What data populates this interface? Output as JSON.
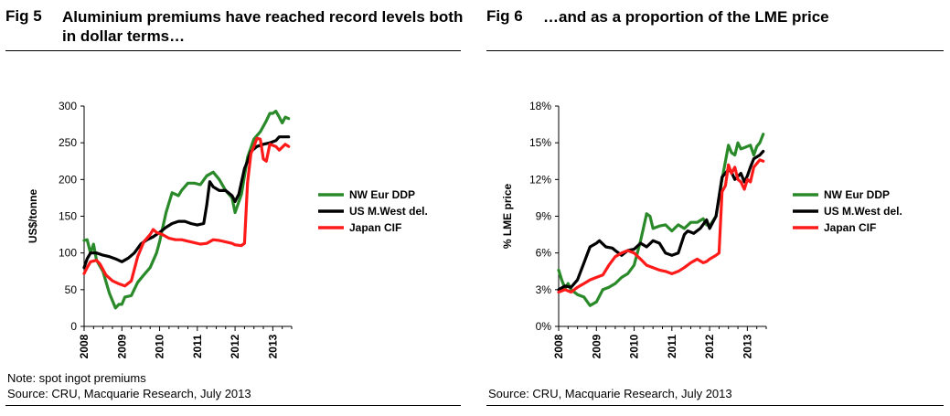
{
  "figures": [
    {
      "fig_number": "Fig 5",
      "title": "Aluminium premiums have reached record levels both in dollar terms…",
      "note": "Note: spot ingot premiums",
      "source": "Source: CRU, Macquarie Research, July 2013"
    },
    {
      "fig_number": "Fig 6",
      "title": "…and as a proportion of the LME price",
      "note": "",
      "source": "Source: CRU, Macquarie Research, July 2013"
    }
  ],
  "colors": {
    "nw_eur": "#2a8a2a",
    "us_mwest": "#000000",
    "japan": "#ff1a1a"
  },
  "chart_data": [
    {
      "type": "line",
      "ylabel": "US$/tonne",
      "xlabel": "",
      "ylim": [
        0,
        300
      ],
      "yticks": [
        "0",
        "50",
        "100",
        "150",
        "200",
        "250",
        "300"
      ],
      "xlim": [
        2008,
        2013.5
      ],
      "xticks": [
        "2008",
        "2009",
        "2010",
        "2011",
        "2012",
        "2013"
      ],
      "legend_position": "right",
      "grid": false,
      "series": [
        {
          "name": "NW Eur DDP",
          "color": "#2a8a2a",
          "points": [
            [
              2008.0,
              117
            ],
            [
              2008.08,
              118
            ],
            [
              2008.17,
              100
            ],
            [
              2008.25,
              112
            ],
            [
              2008.33,
              90
            ],
            [
              2008.5,
              75
            ],
            [
              2008.67,
              45
            ],
            [
              2008.83,
              25
            ],
            [
              2008.92,
              30
            ],
            [
              2009.0,
              30
            ],
            [
              2009.08,
              40
            ],
            [
              2009.25,
              42
            ],
            [
              2009.42,
              60
            ],
            [
              2009.58,
              70
            ],
            [
              2009.75,
              80
            ],
            [
              2009.92,
              100
            ],
            [
              2010.0,
              115
            ],
            [
              2010.17,
              155
            ],
            [
              2010.33,
              182
            ],
            [
              2010.5,
              178
            ],
            [
              2010.58,
              185
            ],
            [
              2010.75,
              195
            ],
            [
              2010.92,
              195
            ],
            [
              2011.08,
              193
            ],
            [
              2011.25,
              205
            ],
            [
              2011.42,
              210
            ],
            [
              2011.58,
              200
            ],
            [
              2011.75,
              185
            ],
            [
              2011.92,
              175
            ],
            [
              2012.0,
              155
            ],
            [
              2012.17,
              180
            ],
            [
              2012.33,
              230
            ],
            [
              2012.5,
              255
            ],
            [
              2012.67,
              265
            ],
            [
              2012.83,
              280
            ],
            [
              2012.92,
              290
            ],
            [
              2013.0,
              290
            ],
            [
              2013.08,
              293
            ],
            [
              2013.17,
              285
            ],
            [
              2013.25,
              277
            ],
            [
              2013.33,
              285
            ],
            [
              2013.42,
              283
            ]
          ]
        },
        {
          "name": "US M.West del.",
          "color": "#000000",
          "points": [
            [
              2008.0,
              80
            ],
            [
              2008.08,
              92
            ],
            [
              2008.17,
              100
            ],
            [
              2008.33,
              100
            ],
            [
              2008.5,
              97
            ],
            [
              2008.67,
              95
            ],
            [
              2008.83,
              92
            ],
            [
              2009.0,
              88
            ],
            [
              2009.17,
              93
            ],
            [
              2009.33,
              100
            ],
            [
              2009.5,
              112
            ],
            [
              2009.67,
              118
            ],
            [
              2009.83,
              122
            ],
            [
              2010.0,
              128
            ],
            [
              2010.17,
              135
            ],
            [
              2010.33,
              140
            ],
            [
              2010.5,
              143
            ],
            [
              2010.67,
              143
            ],
            [
              2010.83,
              140
            ],
            [
              2011.0,
              138
            ],
            [
              2011.17,
              140
            ],
            [
              2011.25,
              165
            ],
            [
              2011.33,
              197
            ],
            [
              2011.42,
              190
            ],
            [
              2011.58,
              185
            ],
            [
              2011.75,
              185
            ],
            [
              2011.92,
              178
            ],
            [
              2012.0,
              170
            ],
            [
              2012.1,
              180
            ],
            [
              2012.25,
              215
            ],
            [
              2012.33,
              225
            ],
            [
              2012.42,
              238
            ],
            [
              2012.58,
              245
            ],
            [
              2012.75,
              248
            ],
            [
              2012.92,
              250
            ],
            [
              2013.08,
              253
            ],
            [
              2013.17,
              258
            ],
            [
              2013.42,
              258
            ]
          ]
        },
        {
          "name": "Japan CIF",
          "color": "#ff1a1a",
          "points": [
            [
              2008.0,
              72
            ],
            [
              2008.08,
              80
            ],
            [
              2008.17,
              88
            ],
            [
              2008.33,
              90
            ],
            [
              2008.42,
              85
            ],
            [
              2008.58,
              70
            ],
            [
              2008.75,
              62
            ],
            [
              2008.92,
              58
            ],
            [
              2009.08,
              55
            ],
            [
              2009.25,
              62
            ],
            [
              2009.42,
              95
            ],
            [
              2009.58,
              115
            ],
            [
              2009.75,
              125
            ],
            [
              2009.83,
              132
            ],
            [
              2009.92,
              128
            ],
            [
              2010.08,
              125
            ],
            [
              2010.25,
              120
            ],
            [
              2010.42,
              118
            ],
            [
              2010.58,
              118
            ],
            [
              2010.75,
              116
            ],
            [
              2010.92,
              114
            ],
            [
              2011.08,
              112
            ],
            [
              2011.25,
              113
            ],
            [
              2011.42,
              118
            ],
            [
              2011.58,
              117
            ],
            [
              2011.75,
              115
            ],
            [
              2011.92,
              113
            ],
            [
              2012.0,
              111
            ],
            [
              2012.17,
              110
            ],
            [
              2012.25,
              113
            ],
            [
              2012.33,
              195
            ],
            [
              2012.42,
              235
            ],
            [
              2012.5,
              245
            ],
            [
              2012.58,
              256
            ],
            [
              2012.67,
              255
            ],
            [
              2012.75,
              228
            ],
            [
              2012.83,
              225
            ],
            [
              2012.92,
              248
            ],
            [
              2013.08,
              245
            ],
            [
              2013.17,
              240
            ],
            [
              2013.33,
              248
            ],
            [
              2013.42,
              245
            ]
          ]
        }
      ]
    },
    {
      "type": "line",
      "ylabel": "% LME price",
      "xlabel": "",
      "ylim": [
        0,
        18
      ],
      "yticks": [
        "0%",
        "3%",
        "6%",
        "9%",
        "12%",
        "15%",
        "18%"
      ],
      "xlim": [
        2008,
        2013.5
      ],
      "xticks": [
        "2008",
        "2009",
        "2010",
        "2011",
        "2012",
        "2013"
      ],
      "legend_position": "right",
      "grid": false,
      "series": [
        {
          "name": "NW Eur DDP",
          "color": "#2a8a2a",
          "points": [
            [
              2008.0,
              4.6
            ],
            [
              2008.08,
              3.8
            ],
            [
              2008.17,
              3.1
            ],
            [
              2008.25,
              3.5
            ],
            [
              2008.33,
              3.0
            ],
            [
              2008.5,
              2.6
            ],
            [
              2008.67,
              2.4
            ],
            [
              2008.83,
              1.7
            ],
            [
              2009.0,
              2.0
            ],
            [
              2009.17,
              3.0
            ],
            [
              2009.33,
              3.2
            ],
            [
              2009.5,
              3.5
            ],
            [
              2009.67,
              4.0
            ],
            [
              2009.83,
              4.3
            ],
            [
              2010.0,
              5.0
            ],
            [
              2010.17,
              7.0
            ],
            [
              2010.33,
              9.2
            ],
            [
              2010.42,
              9.0
            ],
            [
              2010.5,
              8.0
            ],
            [
              2010.67,
              8.2
            ],
            [
              2010.83,
              8.3
            ],
            [
              2011.0,
              7.8
            ],
            [
              2011.17,
              8.3
            ],
            [
              2011.33,
              8.0
            ],
            [
              2011.5,
              8.5
            ],
            [
              2011.67,
              8.5
            ],
            [
              2011.83,
              8.8
            ],
            [
              2011.92,
              8.3
            ],
            [
              2012.0,
              8.2
            ],
            [
              2012.17,
              9.0
            ],
            [
              2012.33,
              12.0
            ],
            [
              2012.5,
              14.8
            ],
            [
              2012.58,
              14.2
            ],
            [
              2012.67,
              14.0
            ],
            [
              2012.75,
              15.0
            ],
            [
              2012.83,
              14.5
            ],
            [
              2012.92,
              14.6
            ],
            [
              2013.08,
              14.8
            ],
            [
              2013.17,
              14.0
            ],
            [
              2013.25,
              14.7
            ],
            [
              2013.33,
              15.0
            ],
            [
              2013.42,
              15.7
            ]
          ]
        },
        {
          "name": "US M.West del.",
          "color": "#000000",
          "points": [
            [
              2008.0,
              3.0
            ],
            [
              2008.17,
              3.3
            ],
            [
              2008.33,
              3.2
            ],
            [
              2008.5,
              3.8
            ],
            [
              2008.67,
              5.2
            ],
            [
              2008.83,
              6.5
            ],
            [
              2009.0,
              6.8
            ],
            [
              2009.08,
              7.0
            ],
            [
              2009.25,
              6.5
            ],
            [
              2009.42,
              6.4
            ],
            [
              2009.5,
              6.2
            ],
            [
              2009.67,
              5.8
            ],
            [
              2009.83,
              6.2
            ],
            [
              2010.0,
              6.3
            ],
            [
              2010.17,
              6.8
            ],
            [
              2010.33,
              6.5
            ],
            [
              2010.5,
              7.0
            ],
            [
              2010.67,
              6.8
            ],
            [
              2010.83,
              6.0
            ],
            [
              2011.0,
              5.8
            ],
            [
              2011.17,
              6.0
            ],
            [
              2011.33,
              7.5
            ],
            [
              2011.42,
              7.8
            ],
            [
              2011.58,
              7.6
            ],
            [
              2011.75,
              8.0
            ],
            [
              2011.92,
              8.7
            ],
            [
              2012.0,
              8.0
            ],
            [
              2012.17,
              9.0
            ],
            [
              2012.33,
              12.2
            ],
            [
              2012.5,
              12.8
            ],
            [
              2012.58,
              12.6
            ],
            [
              2012.67,
              12.0
            ],
            [
              2012.83,
              12.5
            ],
            [
              2012.92,
              11.8
            ],
            [
              2013.0,
              12.3
            ],
            [
              2013.08,
              13.0
            ],
            [
              2013.17,
              13.7
            ],
            [
              2013.33,
              14.0
            ],
            [
              2013.42,
              14.3
            ]
          ]
        },
        {
          "name": "Japan CIF",
          "color": "#ff1a1a",
          "points": [
            [
              2008.0,
              2.8
            ],
            [
              2008.17,
              3.0
            ],
            [
              2008.33,
              2.8
            ],
            [
              2008.5,
              3.2
            ],
            [
              2008.67,
              3.5
            ],
            [
              2008.83,
              3.8
            ],
            [
              2009.0,
              4.0
            ],
            [
              2009.17,
              4.2
            ],
            [
              2009.33,
              5.0
            ],
            [
              2009.5,
              5.7
            ],
            [
              2009.67,
              6.0
            ],
            [
              2009.83,
              6.2
            ],
            [
              2010.0,
              6.0
            ],
            [
              2010.17,
              5.5
            ],
            [
              2010.33,
              5.0
            ],
            [
              2010.5,
              4.8
            ],
            [
              2010.67,
              4.6
            ],
            [
              2010.83,
              4.5
            ],
            [
              2011.0,
              4.3
            ],
            [
              2011.17,
              4.5
            ],
            [
              2011.33,
              4.8
            ],
            [
              2011.5,
              5.2
            ],
            [
              2011.67,
              5.5
            ],
            [
              2011.83,
              5.2
            ],
            [
              2011.92,
              5.3
            ],
            [
              2012.0,
              5.5
            ],
            [
              2012.17,
              5.8
            ],
            [
              2012.25,
              6.0
            ],
            [
              2012.33,
              11.0
            ],
            [
              2012.42,
              11.5
            ],
            [
              2012.5,
              13.2
            ],
            [
              2012.58,
              12.5
            ],
            [
              2012.67,
              13.0
            ],
            [
              2012.75,
              12.0
            ],
            [
              2012.83,
              11.8
            ],
            [
              2012.92,
              11.2
            ],
            [
              2013.0,
              12.0
            ],
            [
              2013.08,
              11.8
            ],
            [
              2013.17,
              13.0
            ],
            [
              2013.33,
              13.6
            ],
            [
              2013.42,
              13.5
            ]
          ]
        }
      ]
    }
  ]
}
